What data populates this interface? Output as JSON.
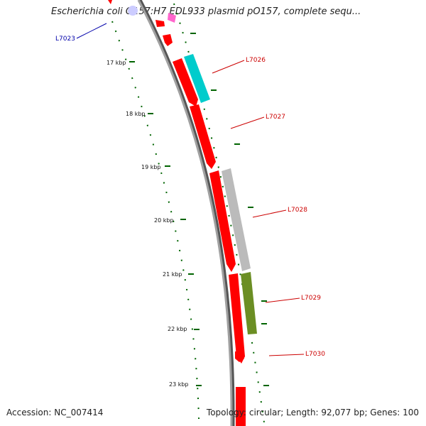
{
  "title": "Escherichia coli O157:H7 EDL933 plasmid pO157, complete sequ...",
  "footer": {
    "accession": "Accession: NC_007414",
    "summary": "Topology: circular; Length: 92,077 bp; Genes: 100"
  },
  "colors": {
    "backbone": "#888888",
    "cds": "#ff0000",
    "cyan_feature": "#00cccc",
    "gray_feature": "#bbbbbb",
    "olive_feature": "#6b8e23",
    "tick": "#006400",
    "label_red": "#cc0000",
    "label_blue": "#0000aa",
    "pink_feature": "#ff66cc",
    "lavender_feature": "#ccccff"
  },
  "ticks": [
    {
      "label": "17 kbp"
    },
    {
      "label": "18 kbp"
    },
    {
      "label": "19 kbp"
    },
    {
      "label": "20 kbp"
    },
    {
      "label": "21 kbp"
    },
    {
      "label": "22 kbp"
    },
    {
      "label": "23 kbp"
    }
  ],
  "gene_labels": [
    {
      "text": "L7023",
      "color": "label_blue"
    },
    {
      "text": "L7026",
      "color": "label_red"
    },
    {
      "text": "L7027",
      "color": "label_red"
    },
    {
      "text": "L7028",
      "color": "label_red"
    },
    {
      "text": "L7029",
      "color": "label_red"
    },
    {
      "text": "L7030",
      "color": "label_red"
    }
  ]
}
